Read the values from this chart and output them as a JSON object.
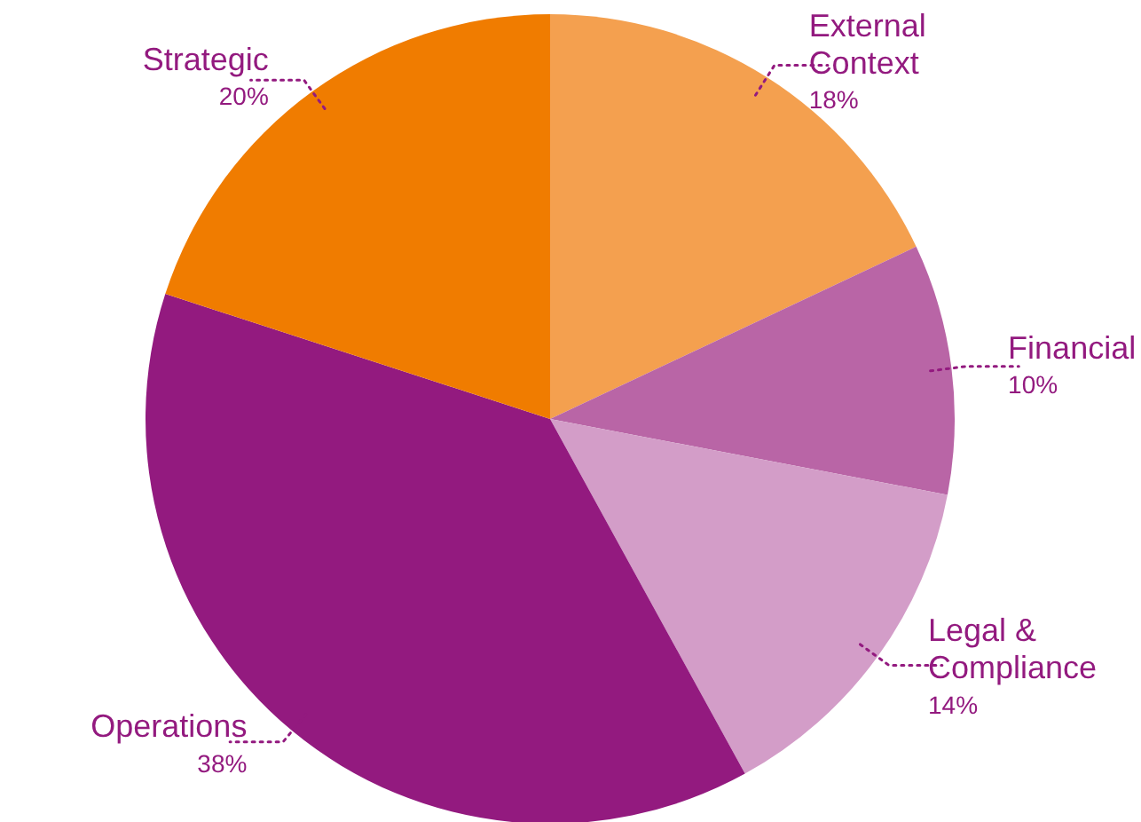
{
  "chart_data": {
    "type": "pie",
    "categories": [
      "External Context",
      "Financial",
      "Legal & Compliance",
      "Operations",
      "Strategic"
    ],
    "values": [
      18,
      10,
      14,
      38,
      20
    ],
    "colors": [
      "#f4a04f",
      "#b965a6",
      "#d39dc8",
      "#931a7f",
      "#f07c00"
    ],
    "value_labels": [
      "18%",
      "10%",
      "14%",
      "38%",
      "20%"
    ]
  }
}
